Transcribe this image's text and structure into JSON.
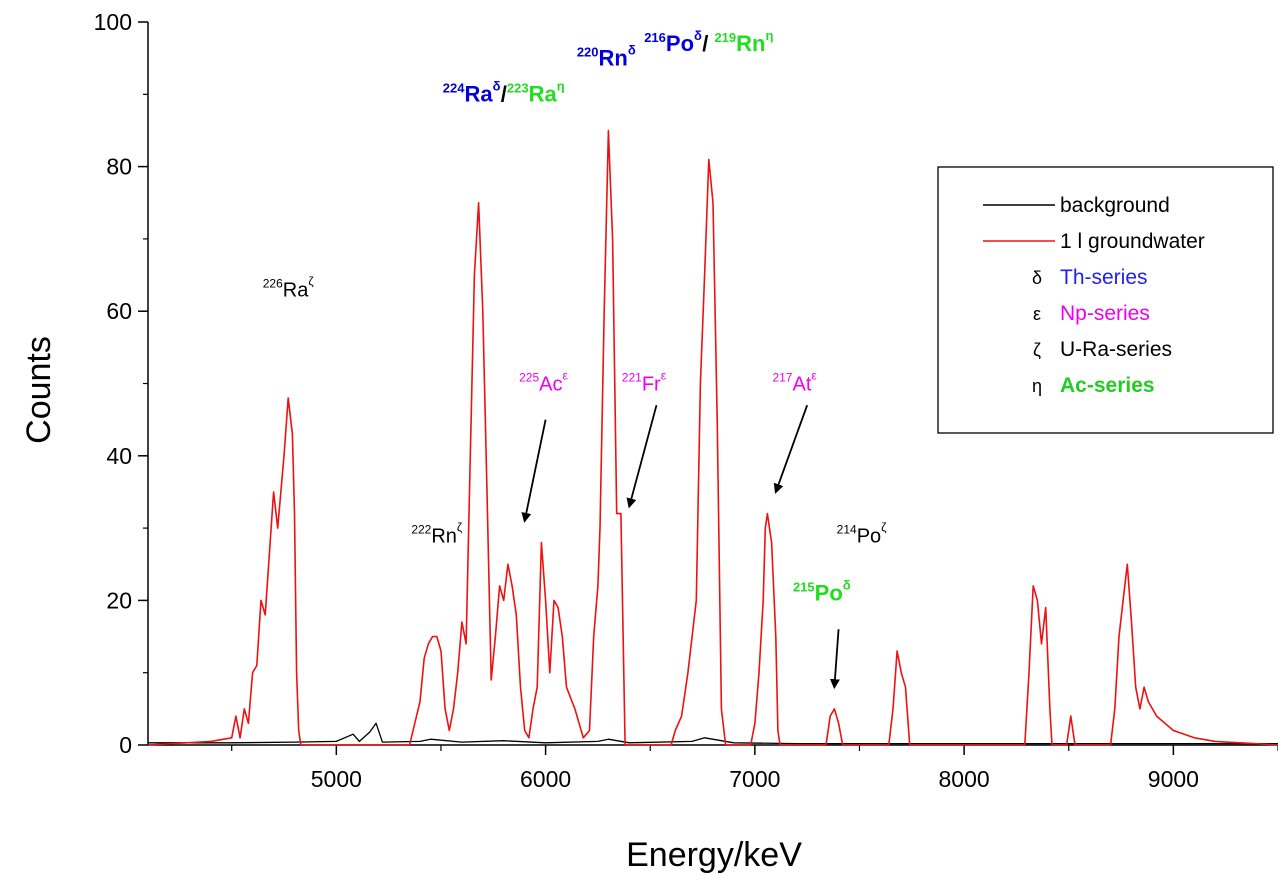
{
  "chart_data": {
    "type": "line",
    "xlabel": "Energy/keV",
    "ylabel": "Counts",
    "xlim": [
      4100,
      9500
    ],
    "ylim": [
      0,
      100
    ],
    "x_ticks": [
      5000,
      6000,
      7000,
      8000,
      9000
    ],
    "x_minor_ticks": [
      4500,
      5500,
      6500,
      7500,
      8500,
      9500
    ],
    "y_ticks": [
      0,
      20,
      40,
      60,
      80,
      100
    ],
    "grid": false,
    "legend_position": "top-right",
    "series": [
      {
        "name": "background",
        "color": "#000000",
        "points": [
          [
            4100,
            0.3
          ],
          [
            4500,
            0.3
          ],
          [
            4800,
            0.4
          ],
          [
            5000,
            0.5
          ],
          [
            5080,
            1.5
          ],
          [
            5110,
            0.5
          ],
          [
            5160,
            1.8
          ],
          [
            5190,
            3.0
          ],
          [
            5220,
            0.4
          ],
          [
            5400,
            0.5
          ],
          [
            5450,
            0.8
          ],
          [
            5600,
            0.4
          ],
          [
            5800,
            0.6
          ],
          [
            6000,
            0.3
          ],
          [
            6250,
            0.5
          ],
          [
            6300,
            0.8
          ],
          [
            6400,
            0.3
          ],
          [
            6700,
            0.5
          ],
          [
            6760,
            1.0
          ],
          [
            6900,
            0.3
          ],
          [
            7200,
            0.2
          ],
          [
            8000,
            0.2
          ],
          [
            9500,
            0.2
          ]
        ]
      },
      {
        "name": "1 l groundwater",
        "color": "#ee1111",
        "points": [
          [
            4100,
            0
          ],
          [
            4400,
            0.5
          ],
          [
            4500,
            1
          ],
          [
            4520,
            4
          ],
          [
            4540,
            1
          ],
          [
            4560,
            5
          ],
          [
            4580,
            3
          ],
          [
            4600,
            10
          ],
          [
            4620,
            11
          ],
          [
            4640,
            20
          ],
          [
            4660,
            18
          ],
          [
            4700,
            35
          ],
          [
            4720,
            30
          ],
          [
            4750,
            40
          ],
          [
            4770,
            48
          ],
          [
            4790,
            43
          ],
          [
            4800,
            32
          ],
          [
            4810,
            10
          ],
          [
            4820,
            2
          ],
          [
            4830,
            0
          ],
          [
            5350,
            0
          ],
          [
            5400,
            6
          ],
          [
            5420,
            12
          ],
          [
            5440,
            14
          ],
          [
            5460,
            15
          ],
          [
            5480,
            15
          ],
          [
            5500,
            13
          ],
          [
            5520,
            5
          ],
          [
            5540,
            2
          ],
          [
            5560,
            5
          ],
          [
            5580,
            10
          ],
          [
            5600,
            17
          ],
          [
            5620,
            14
          ],
          [
            5640,
            40
          ],
          [
            5660,
            65
          ],
          [
            5680,
            75
          ],
          [
            5700,
            60
          ],
          [
            5720,
            35
          ],
          [
            5740,
            9
          ],
          [
            5760,
            15
          ],
          [
            5780,
            22
          ],
          [
            5800,
            20
          ],
          [
            5820,
            25
          ],
          [
            5840,
            22
          ],
          [
            5860,
            18
          ],
          [
            5880,
            8
          ],
          [
            5900,
            2
          ],
          [
            5920,
            1
          ],
          [
            5940,
            5
          ],
          [
            5960,
            8
          ],
          [
            5980,
            28
          ],
          [
            6000,
            20
          ],
          [
            6020,
            10
          ],
          [
            6040,
            20
          ],
          [
            6060,
            19
          ],
          [
            6080,
            15
          ],
          [
            6100,
            8
          ],
          [
            6140,
            5
          ],
          [
            6180,
            1
          ],
          [
            6210,
            2
          ],
          [
            6230,
            15
          ],
          [
            6250,
            22
          ],
          [
            6260,
            30
          ],
          [
            6280,
            60
          ],
          [
            6300,
            85
          ],
          [
            6320,
            70
          ],
          [
            6340,
            32
          ],
          [
            6360,
            32
          ],
          [
            6380,
            0
          ],
          [
            6600,
            0
          ],
          [
            6620,
            2
          ],
          [
            6650,
            4
          ],
          [
            6680,
            10
          ],
          [
            6700,
            15
          ],
          [
            6720,
            20
          ],
          [
            6740,
            50
          ],
          [
            6760,
            65
          ],
          [
            6780,
            81
          ],
          [
            6800,
            75
          ],
          [
            6820,
            45
          ],
          [
            6840,
            5
          ],
          [
            6860,
            0
          ],
          [
            6980,
            0
          ],
          [
            7000,
            3
          ],
          [
            7020,
            10
          ],
          [
            7040,
            20
          ],
          [
            7050,
            30
          ],
          [
            7060,
            32
          ],
          [
            7080,
            28
          ],
          [
            7100,
            15
          ],
          [
            7110,
            2
          ],
          [
            7120,
            0
          ],
          [
            7340,
            0
          ],
          [
            7360,
            4
          ],
          [
            7380,
            5
          ],
          [
            7400,
            3
          ],
          [
            7420,
            0
          ],
          [
            7640,
            0
          ],
          [
            7660,
            5
          ],
          [
            7680,
            13
          ],
          [
            7700,
            10
          ],
          [
            7720,
            8
          ],
          [
            7740,
            0
          ],
          [
            8290,
            0
          ],
          [
            8310,
            10
          ],
          [
            8330,
            22
          ],
          [
            8350,
            20
          ],
          [
            8370,
            14
          ],
          [
            8390,
            19
          ],
          [
            8410,
            5
          ],
          [
            8420,
            0
          ],
          [
            8490,
            0
          ],
          [
            8510,
            4
          ],
          [
            8530,
            0
          ],
          [
            8700,
            0
          ],
          [
            8720,
            5
          ],
          [
            8740,
            15
          ],
          [
            8760,
            20
          ],
          [
            8780,
            25
          ],
          [
            8800,
            17
          ],
          [
            8820,
            8
          ],
          [
            8840,
            5
          ],
          [
            8860,
            8
          ],
          [
            8880,
            6
          ],
          [
            8920,
            4
          ],
          [
            9000,
            2
          ],
          [
            9100,
            1
          ],
          [
            9200,
            0.5
          ],
          [
            9500,
            0
          ]
        ]
      }
    ],
    "peak_labels": [
      {
        "nuclide": "226",
        "symbol": "Ra",
        "series": "ζ",
        "energy": 4770,
        "counts": 62,
        "color": "#000000",
        "bold": false
      },
      {
        "nuclide": "222",
        "symbol": "Rn",
        "series": "ζ",
        "energy": 5480,
        "counts": 28,
        "color": "#000000",
        "bold": false
      },
      {
        "nuclide": "224",
        "symbol": "Ra",
        "series": "δ",
        "energy": 5800,
        "counts": 89,
        "color": "#0000dd",
        "bold": true
      },
      {
        "nuclide": "223",
        "symbol": "Ra",
        "series": "η",
        "energy": 5800,
        "counts": 89,
        "color": "#22dd22",
        "bold": true
      },
      {
        "nuclide": "220",
        "symbol": "Rn",
        "series": "δ",
        "energy": 6290,
        "counts": 94,
        "color": "#0000dd",
        "bold": true
      },
      {
        "nuclide": "216",
        "symbol": "Po",
        "series": "δ",
        "energy": 6780,
        "counts": 96,
        "color": "#0000dd",
        "bold": true
      },
      {
        "nuclide": "219",
        "symbol": "Rn",
        "series": "η",
        "energy": 6780,
        "counts": 96,
        "color": "#22dd22",
        "bold": true
      },
      {
        "nuclide": "225",
        "symbol": "Ac",
        "series": "ε",
        "energy": 5990,
        "counts": 49,
        "color": "#ee00ee",
        "bold": false
      },
      {
        "nuclide": "221",
        "symbol": "Fr",
        "series": "ε",
        "energy": 6470,
        "counts": 49,
        "color": "#ee00ee",
        "bold": false
      },
      {
        "nuclide": "217",
        "symbol": "At",
        "series": "ε",
        "energy": 7190,
        "counts": 49,
        "color": "#ee00ee",
        "bold": false
      },
      {
        "nuclide": "214",
        "symbol": "Po",
        "series": "ζ",
        "energy": 7510,
        "counts": 28,
        "color": "#000000",
        "bold": false
      },
      {
        "nuclide": "215",
        "symbol": "Po",
        "series": "δ",
        "energy": 7320,
        "counts": 20,
        "color": "#22dd22",
        "bold": true
      }
    ],
    "arrows": [
      {
        "from": [
          6000,
          45
        ],
        "to": [
          5900,
          31
        ]
      },
      {
        "from": [
          6530,
          47
        ],
        "to": [
          6400,
          33
        ]
      },
      {
        "from": [
          7250,
          47
        ],
        "to": [
          7100,
          35
        ]
      },
      {
        "from": [
          7400,
          16
        ],
        "to": [
          7380,
          8
        ]
      }
    ],
    "legend": [
      {
        "symbol": "",
        "label": "background",
        "color": "#000000",
        "line": true,
        "line_color": "#000000",
        "bold": false
      },
      {
        "symbol": "",
        "label": "1 l groundwater",
        "color": "#000000",
        "line": true,
        "line_color": "#ee1111",
        "bold": false
      },
      {
        "symbol": "δ",
        "label": "Th-series",
        "color": "#2222ee",
        "line": false,
        "bold": false
      },
      {
        "symbol": "ε",
        "label": "Np-series",
        "color": "#ee00ee",
        "line": false,
        "bold": false
      },
      {
        "symbol": "ζ",
        "label": "U-Ra-series",
        "color": "#000000",
        "line": false,
        "bold": false
      },
      {
        "symbol": "η",
        "label": "Ac-series",
        "color": "#22cc22",
        "line": false,
        "bold": true
      }
    ]
  }
}
